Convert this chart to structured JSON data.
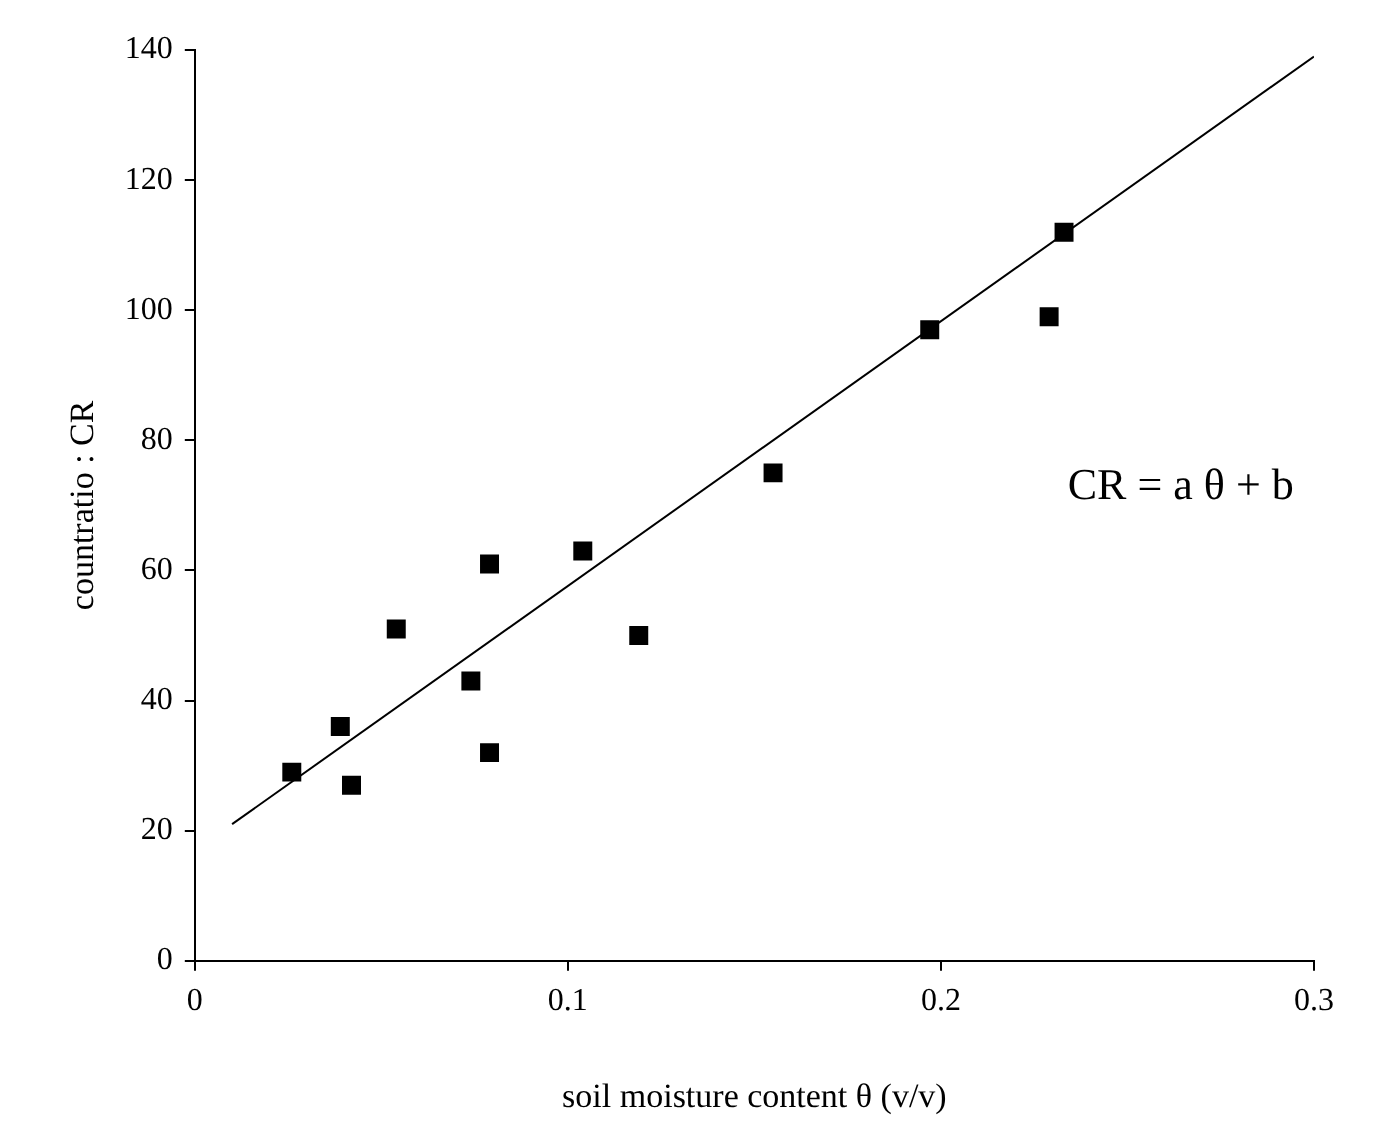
{
  "chart_data": {
    "type": "scatter",
    "xlabel": "soil moisture content θ (v/v)",
    "ylabel": "countratio : CR",
    "xlim": [
      0,
      0.3
    ],
    "xticks": [
      0,
      0.1,
      0.2,
      0.3
    ],
    "ylim": [
      0,
      140
    ],
    "yticks": [
      0,
      20,
      40,
      60,
      80,
      100,
      120,
      140
    ],
    "grid": false,
    "legend": false,
    "annotations": [
      "CR = a θ + b"
    ],
    "series": [
      {
        "type": "scatter",
        "color": "#000000",
        "marker": "square",
        "x": [
          0.026,
          0.039,
          0.042,
          0.054,
          0.074,
          0.079,
          0.079,
          0.104,
          0.119,
          0.155,
          0.197,
          0.229,
          0.233
        ],
        "values": [
          29,
          36,
          27,
          51,
          43,
          61,
          32,
          63,
          50,
          75,
          97,
          99,
          112
        ]
      },
      {
        "type": "line",
        "color": "#000000",
        "marker": "none",
        "line_style": "solid",
        "x": [
          0.01,
          0.3
        ],
        "values": [
          21,
          139
        ]
      }
    ]
  }
}
